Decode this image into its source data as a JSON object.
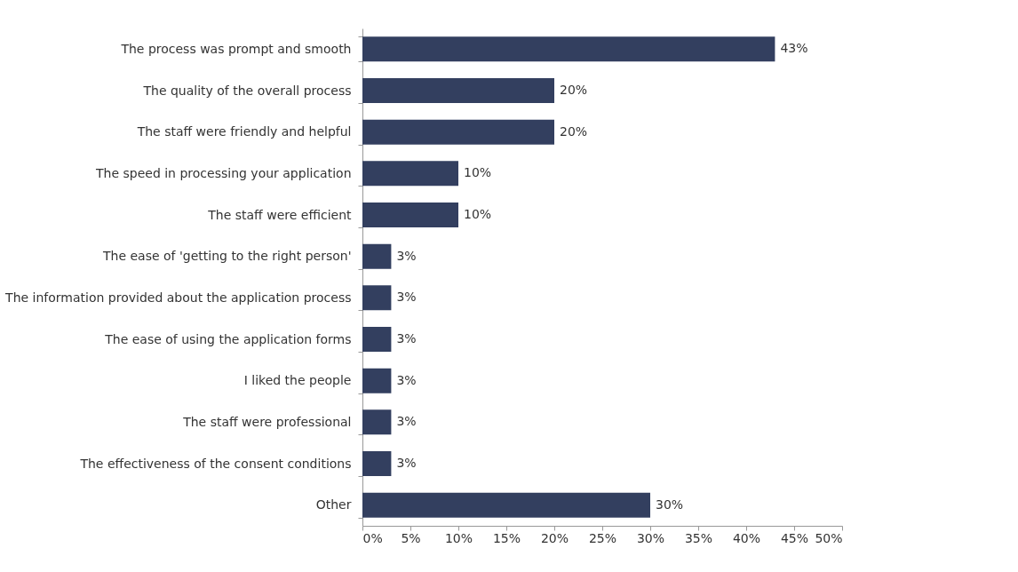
{
  "chart_data": {
    "type": "bar",
    "orientation": "horizontal",
    "categories": [
      "The process was prompt and smooth",
      "The quality of the overall process",
      "The staff were friendly and helpful",
      "The speed in processing your application",
      "The staff were efficient",
      "The ease of 'getting to the right person'",
      "The information provided about the application process",
      "The ease of using the application forms",
      "I liked the people",
      "The staff were professional",
      "The effectiveness of the consent conditions",
      "Other"
    ],
    "values": [
      43,
      20,
      20,
      10,
      10,
      3,
      3,
      3,
      3,
      3,
      3,
      30
    ],
    "value_labels": [
      "43%",
      "20%",
      "20%",
      "10%",
      "10%",
      "3%",
      "3%",
      "3%",
      "3%",
      "3%",
      "3%",
      "30%"
    ],
    "color": "#333f5f",
    "xlim": [
      0,
      50
    ],
    "xticks": [
      {
        "value": 0,
        "label": "0%"
      },
      {
        "value": 5,
        "label": "5%"
      },
      {
        "value": 10,
        "label": "10%"
      },
      {
        "value": 15,
        "label": "15%"
      },
      {
        "value": 20,
        "label": "20%"
      },
      {
        "value": 25,
        "label": "25%"
      },
      {
        "value": 30,
        "label": "30%"
      },
      {
        "value": 35,
        "label": "35%"
      },
      {
        "value": 40,
        "label": "40%"
      },
      {
        "value": 45,
        "label": "45%"
      },
      {
        "value": 50,
        "label": "50%"
      }
    ],
    "grid": false
  }
}
